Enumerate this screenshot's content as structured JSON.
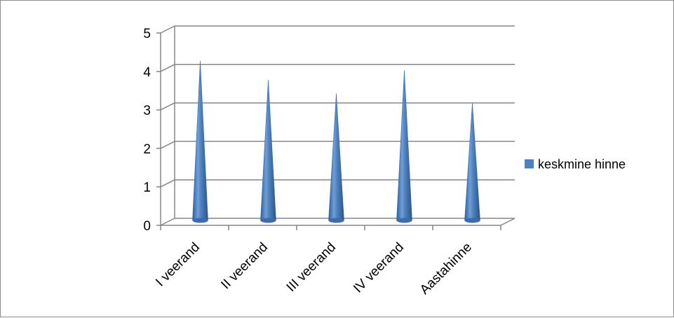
{
  "chart_data": {
    "type": "bar",
    "shape": "cone",
    "categories": [
      "I veerand",
      "II veerand",
      "III veerand",
      "IV veerand",
      "Aastahinne"
    ],
    "series": [
      {
        "name": "keskmine hinne",
        "values": [
          4.3,
          3.8,
          3.45,
          4.05,
          3.2
        ],
        "color": "#4f81bd"
      }
    ],
    "title": "",
    "xlabel": "",
    "ylabel": "",
    "ylim": [
      0,
      5
    ],
    "yticks": [
      "0",
      "1",
      "2",
      "3",
      "4",
      "5"
    ],
    "grid": true,
    "legend_position": "right"
  }
}
